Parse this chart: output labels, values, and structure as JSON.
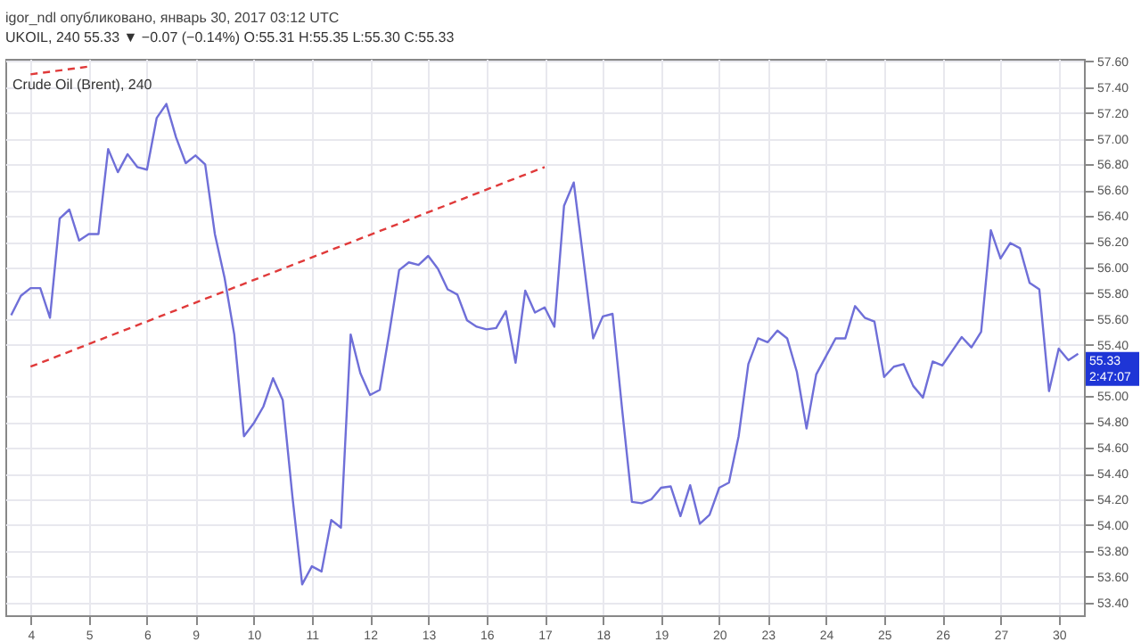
{
  "chart_data": {
    "type": "line",
    "title": "Crude Oil (Brent), 240",
    "annotations": [
      "igor_ndl опубликовано, январь 30, 2017 03:12 UTC",
      "UKOIL, 240 55.33 ▼ −0.07 (−0.14%) O:55.31 H:55.35 L:55.30 C:55.33",
      "55.33",
      "2:47:07"
    ],
    "categories": [
      null,
      null,
      "4",
      null,
      null,
      null,
      null,
      null,
      "5",
      null,
      null,
      null,
      null,
      null,
      "6",
      null,
      null,
      null,
      null,
      "9",
      null,
      null,
      null,
      null,
      null,
      "10",
      null,
      null,
      null,
      null,
      null,
      "11",
      null,
      null,
      null,
      null,
      null,
      "12",
      null,
      null,
      null,
      null,
      null,
      "13",
      null,
      null,
      null,
      null,
      null,
      "16",
      null,
      null,
      null,
      null,
      null,
      "17",
      null,
      null,
      null,
      null,
      null,
      "18",
      null,
      null,
      null,
      null,
      null,
      "19",
      null,
      null,
      null,
      null,
      null,
      "20",
      null,
      null,
      null,
      null,
      "23",
      null,
      null,
      null,
      null,
      null,
      "24",
      null,
      null,
      null,
      null,
      null,
      "25",
      null,
      null,
      null,
      null,
      null,
      "26",
      null,
      null,
      null,
      null,
      null,
      "27",
      null,
      null,
      null,
      null,
      null,
      "30",
      null,
      null
    ],
    "ylim": [
      53.3,
      57.62
    ],
    "yticks": [
      {
        "value": 53.4,
        "label": "53.40"
      },
      {
        "value": 53.6,
        "label": "53.60"
      },
      {
        "value": 53.8,
        "label": "53.80"
      },
      {
        "value": 54,
        "label": "54.00"
      },
      {
        "value": 54.2,
        "label": "54.20"
      },
      {
        "value": 54.4,
        "label": "54.40"
      },
      {
        "value": 54.6,
        "label": "54.60"
      },
      {
        "value": 54.8,
        "label": "54.80"
      },
      {
        "value": 55,
        "label": "55.00"
      },
      {
        "value": 55.4,
        "label": "55.40"
      },
      {
        "value": 55.6,
        "label": "55.60"
      },
      {
        "value": 55.8,
        "label": "55.80"
      },
      {
        "value": 56,
        "label": "56.00"
      },
      {
        "value": 56.2,
        "label": "56.20"
      },
      {
        "value": 56.4,
        "label": "56.40"
      },
      {
        "value": 56.6,
        "label": "56.60"
      },
      {
        "value": 56.8,
        "label": "56.80"
      },
      {
        "value": 57,
        "label": "57.00"
      },
      {
        "value": 57.2,
        "label": "57.20"
      },
      {
        "value": 57.4,
        "label": "57.40"
      },
      {
        "value": 57.6,
        "label": "57.60"
      }
    ],
    "grid": true,
    "series": [
      {
        "color": "#6f6fd8",
        "values": [
          55.63,
          55.78,
          55.84,
          55.84,
          55.61,
          56.38,
          56.45,
          56.21,
          56.26,
          56.26,
          56.92,
          56.74,
          56.88,
          56.78,
          56.76,
          57.16,
          57.27,
          57.01,
          56.81,
          56.87,
          56.8,
          56.26,
          55.92,
          55.48,
          54.69,
          54.79,
          54.92,
          55.14,
          54.97,
          54.22,
          53.54,
          53.68,
          53.64,
          54.04,
          53.98,
          55.48,
          55.18,
          55.01,
          55.05,
          55.5,
          55.98,
          56.04,
          56.02,
          56.09,
          55.99,
          55.83,
          55.79,
          55.59,
          55.54,
          55.52,
          55.53,
          55.66,
          55.26,
          55.82,
          55.65,
          55.69,
          55.54,
          56.48,
          56.66,
          56.06,
          55.45,
          55.62,
          55.64,
          54.89,
          54.18,
          54.17,
          54.2,
          54.29,
          54.3,
          54.07,
          54.31,
          54.01,
          54.08,
          54.29,
          54.33,
          54.69,
          55.25,
          55.45,
          55.42,
          55.51,
          55.45,
          55.19,
          54.75,
          55.17,
          55.31,
          55.45,
          55.45,
          55.7,
          55.61,
          55.58,
          55.15,
          55.23,
          55.25,
          55.08,
          54.99,
          55.27,
          55.24,
          55.35,
          55.46,
          55.38,
          55.5,
          56.29,
          56.07,
          56.19,
          56.15,
          55.88,
          55.83,
          55.04,
          55.37,
          55.28,
          55.33
        ]
      },
      {
        "type": "line",
        "color": "#e03a3a",
        "line_style": "dashed",
        "x": [
          "4",
          "17"
        ],
        "values": [
          55.23,
          56.78
        ]
      },
      {
        "type": "line",
        "color": "#e03a3a",
        "line_style": "dashed",
        "x": [
          "4",
          "5"
        ],
        "values": [
          57.5,
          57.56
        ]
      }
    ]
  }
}
